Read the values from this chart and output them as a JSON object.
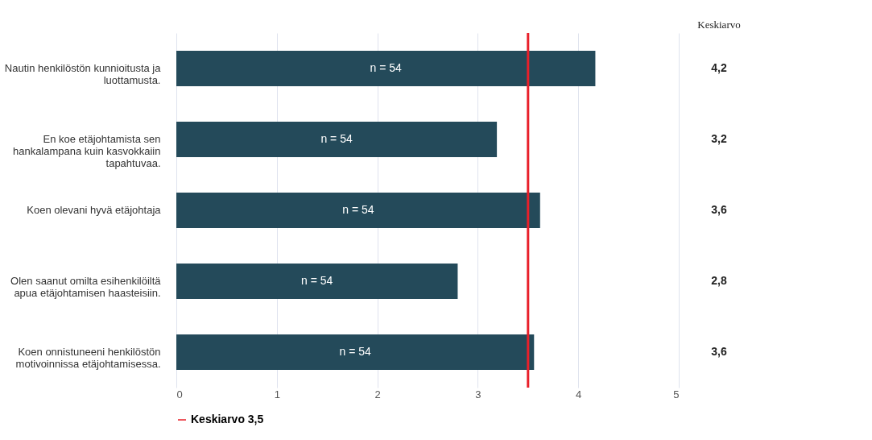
{
  "chart_data": {
    "type": "bar",
    "orientation": "horizontal",
    "categories": [
      "Nautin henkilöstön kunnioitusta ja luottamusta.",
      "En koe etäjohtamista sen hankalampana kuin kasvokkaiin tapahtuvaa.",
      "Koen olevani hyvä etäjohtaja",
      "Olen saanut omilta esihenkilöiltä apua etäjohtamisen haasteisiin.",
      "Koen onnistuneeni henkilöstön motivoinnissa etäjohtamisessa."
    ],
    "values": [
      4.17,
      3.19,
      3.62,
      2.8,
      3.56
    ],
    "value_labels": [
      "4,2",
      "3,2",
      "3,6",
      "2,8",
      "3,6"
    ],
    "color": "#244a5a",
    "xlim": [
      0,
      5
    ],
    "xticks": [
      0,
      1,
      2,
      3,
      4,
      5
    ],
    "grid": "x",
    "legend": "bottom",
    "ref_lines": [
      {
        "axis": "x",
        "value": 3.5,
        "label": "Keskiarvo 3,5",
        "color": "#e8202a"
      }
    ],
    "annotations": [
      "Keskiarvo",
      "n = 54",
      "n = 54",
      "n = 54",
      "n = 54",
      "n = 54"
    ]
  }
}
